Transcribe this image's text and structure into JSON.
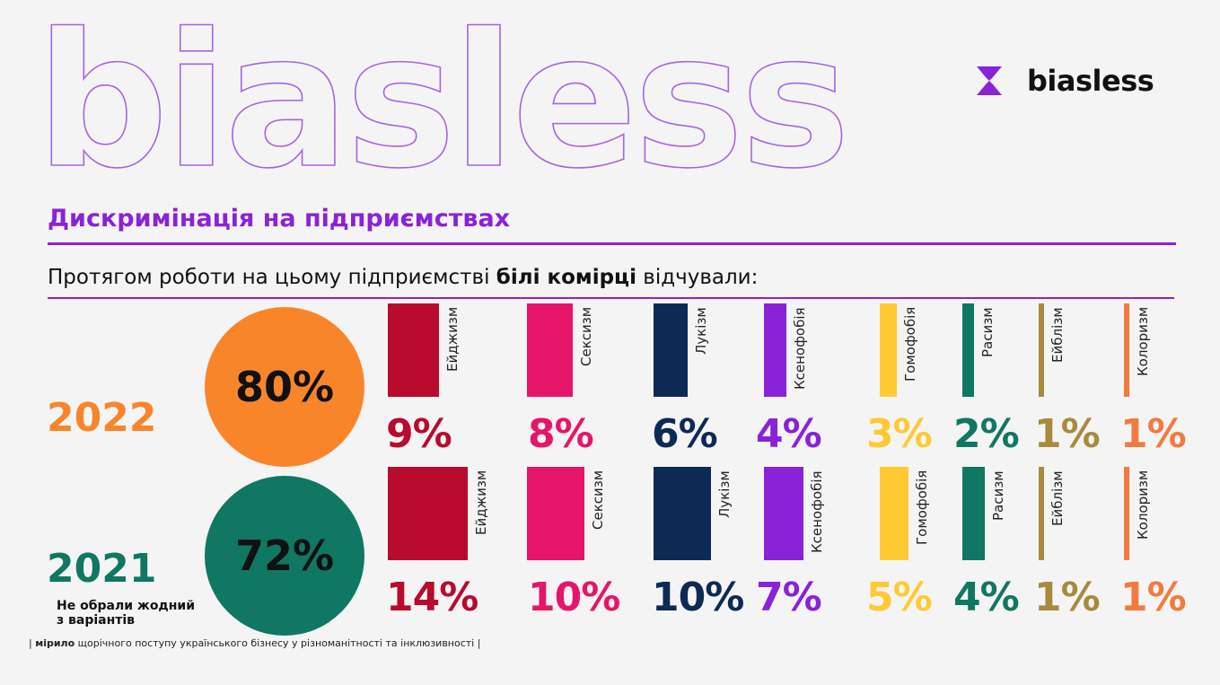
{
  "header": {
    "big_word": "biasless",
    "logo_text": "biasless",
    "brand_color": "#8a22d8"
  },
  "title": "Дискримінація на підприємствах",
  "subtitle": {
    "part1": "Протягом роботи на цьому підприємстві ",
    "bold": "білі комірці",
    "part2": " відчували:"
  },
  "chart_data": {
    "type": "bar",
    "categories": [
      "Ейджизм",
      "Сексизм",
      "Лукізм",
      "Ксенофобія",
      "Гомофобія",
      "Расизм",
      "Ейблізм",
      "Колоризм"
    ],
    "category_colors": [
      "#b80b2d",
      "#e5166a",
      "#0d2a55",
      "#8a22d8",
      "#ffc934",
      "#107762",
      "#a88a3c",
      "#f37a3f"
    ],
    "series": [
      {
        "name": "2022",
        "values": [
          9,
          8,
          6,
          4,
          3,
          2,
          1,
          1
        ],
        "labels": [
          "9%",
          "8%",
          "6%",
          "4%",
          "3%",
          "2%",
          "1%",
          "1%"
        ],
        "none_chosen": 80,
        "none_label": "80%",
        "color": "#f9852b",
        "circle_color": "#f9852b"
      },
      {
        "name": "2021",
        "values": [
          14,
          10,
          10,
          7,
          5,
          4,
          1,
          1
        ],
        "labels": [
          "14%",
          "10%",
          "10%",
          "7%",
          "5%",
          "4%",
          "1%",
          "1%"
        ],
        "none_chosen": 72,
        "none_label": "72%",
        "color": "#107762",
        "circle_color": "#107762"
      }
    ]
  },
  "none_label": "Не обрали жодний\nз варіантів",
  "footer": {
    "bold": "мірило",
    "text": " щорічного поступу українського бізнесу у різноманітності та інклюзивності "
  }
}
